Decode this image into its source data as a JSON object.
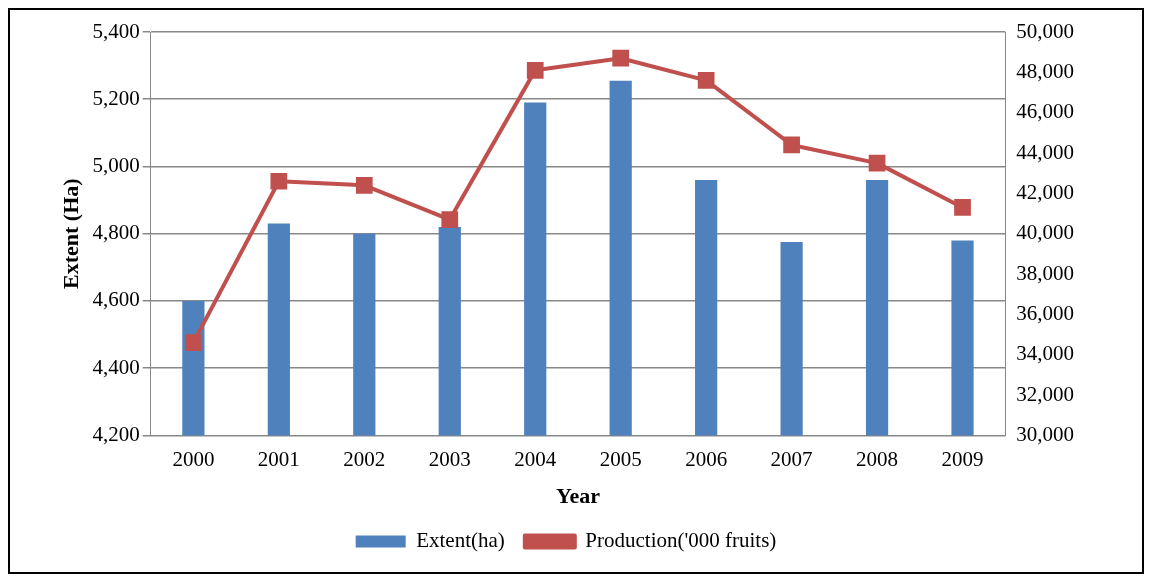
{
  "chart_data": {
    "type": "bar",
    "xlabel": "Year",
    "ylabel": "Extent (Ha)",
    "categories": [
      "2000",
      "2001",
      "2002",
      "2003",
      "2004",
      "2005",
      "2006",
      "2007",
      "2008",
      "2009"
    ],
    "series": [
      {
        "name": "Extent(ha)",
        "color": "#4f81bd",
        "values": [
          4600,
          4830,
          4800,
          4820,
          5190,
          5255,
          4960,
          4775,
          4960,
          4780
        ]
      },
      {
        "name": "Production('000 fruits)",
        "type": "line",
        "axis": "y2",
        "color": "#c0504d",
        "marker": "square",
        "values": [
          34600,
          42600,
          42400,
          40700,
          48100,
          48700,
          47600,
          44400,
          43500,
          41300
        ]
      }
    ],
    "ylim": [
      4200,
      5400
    ],
    "yticks": [
      {
        "value": 4200,
        "label": "4,200"
      },
      {
        "value": 4400,
        "label": "4,400"
      },
      {
        "value": 4600,
        "label": "4,600"
      },
      {
        "value": 4800,
        "label": "4,800"
      },
      {
        "value": 5000,
        "label": "5,000"
      },
      {
        "value": 5200,
        "label": "5,200"
      },
      {
        "value": 5400,
        "label": "5,400"
      }
    ],
    "y2lim": [
      30000,
      50000
    ],
    "y2ticks": [
      {
        "value": 30000,
        "label": "30,000"
      },
      {
        "value": 32000,
        "label": "32,000"
      },
      {
        "value": 34000,
        "label": "34,000"
      },
      {
        "value": 36000,
        "label": "36,000"
      },
      {
        "value": 38000,
        "label": "38,000"
      },
      {
        "value": 40000,
        "label": "40,000"
      },
      {
        "value": 42000,
        "label": "42,000"
      },
      {
        "value": 44000,
        "label": "44,000"
      },
      {
        "value": 46000,
        "label": "46,000"
      },
      {
        "value": 48000,
        "label": "48,000"
      },
      {
        "value": 50000,
        "label": "50,000"
      }
    ],
    "grid": "y",
    "legend": "bottom"
  }
}
